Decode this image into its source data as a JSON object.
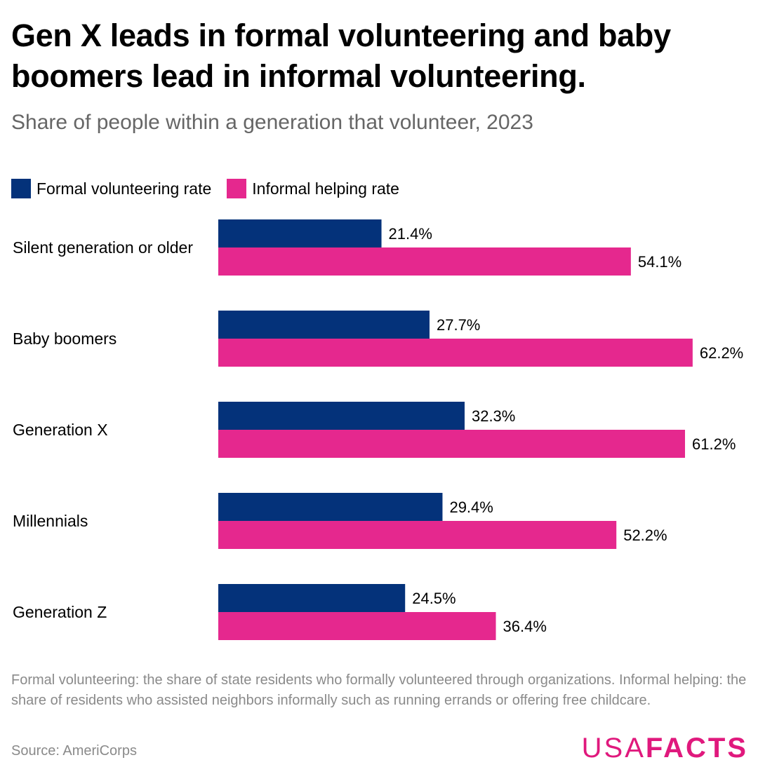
{
  "title": "Gen X leads in formal volunteering and baby boomers lead in informal volunteering.",
  "subtitle": "Share of people within a generation that volunteer, 2023",
  "colors": {
    "formal": "#04327a",
    "informal": "#e5288e"
  },
  "chart_data": {
    "type": "bar",
    "orientation": "horizontal",
    "categories": [
      "Silent generation or older",
      "Baby boomers",
      "Generation X",
      "Millennials",
      "Generation Z"
    ],
    "series": [
      {
        "name": "Formal volunteering rate",
        "color": "#04327a",
        "values": [
          21.4,
          27.7,
          32.3,
          29.4,
          24.5
        ]
      },
      {
        "name": "Informal helping rate",
        "color": "#e5288e",
        "values": [
          54.1,
          62.2,
          61.2,
          52.2,
          36.4
        ]
      }
    ],
    "value_suffix": "%",
    "xlim": [
      0,
      63.5
    ],
    "legend_position": "top-left",
    "grid": false
  },
  "footnotes": {
    "note": "Formal volunteering: the share of state residents who formally volunteered through organizations. Informal helping: the share of residents who assisted neighbors informally such as running errands or offering free childcare.",
    "source": "Source: AmeriCorps"
  },
  "logo": {
    "part1": "USA",
    "part2": "FACTS"
  }
}
